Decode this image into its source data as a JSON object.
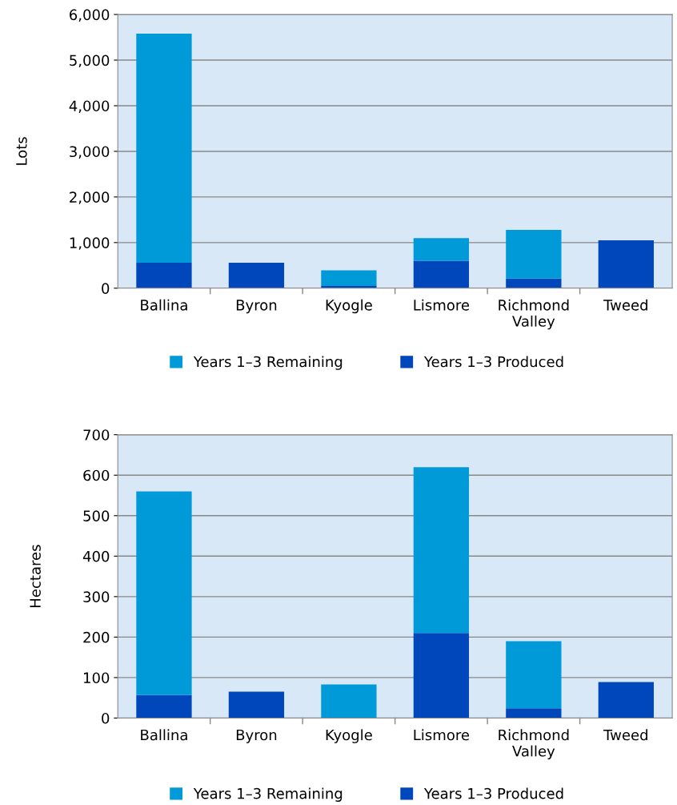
{
  "chart_data": [
    {
      "type": "bar",
      "stacked": true,
      "ylabel": "Lots",
      "categories": [
        "Ballina",
        "Byron",
        "Kyogle",
        "Lismore",
        "Richmond\nValley",
        "Tweed"
      ],
      "series": [
        {
          "name": "Years 1–3 Produced",
          "color": "#0047bb",
          "values": [
            560,
            560,
            50,
            600,
            210,
            1050
          ]
        },
        {
          "name": "Years 1–3 Remaining",
          "color": "#009ad9",
          "values": [
            5020,
            0,
            340,
            500,
            1070,
            0
          ]
        }
      ],
      "ylim": [
        0,
        6000
      ],
      "yticks": [
        0,
        {
          "value": 1000,
          "label": "1,000"
        },
        {
          "value": 2000,
          "label": "2,000"
        },
        {
          "value": 3000,
          "label": "3,000"
        },
        {
          "value": 4000,
          "label": "4,000"
        },
        {
          "value": 5000,
          "label": "5,000"
        },
        {
          "value": 6000,
          "label": "6,000"
        }
      ],
      "grid": "y",
      "legend": "bottom"
    },
    {
      "type": "bar",
      "stacked": true,
      "ylabel": "Hectares",
      "categories": [
        "Ballina",
        "Byron",
        "Kyogle",
        "Lismore",
        "Richmond\nValley",
        "Tweed"
      ],
      "series": [
        {
          "name": "Years 1–3 Produced",
          "color": "#0047bb",
          "values": [
            57,
            65,
            0,
            210,
            24,
            89
          ]
        },
        {
          "name": "Years 1–3 Remaining",
          "color": "#009ad9",
          "values": [
            503,
            0,
            83,
            410,
            166,
            0
          ]
        }
      ],
      "ylim": [
        0,
        700
      ],
      "yticks": [
        0,
        100,
        200,
        300,
        400,
        500,
        600,
        700
      ],
      "grid": "y",
      "legend": "bottom"
    }
  ]
}
